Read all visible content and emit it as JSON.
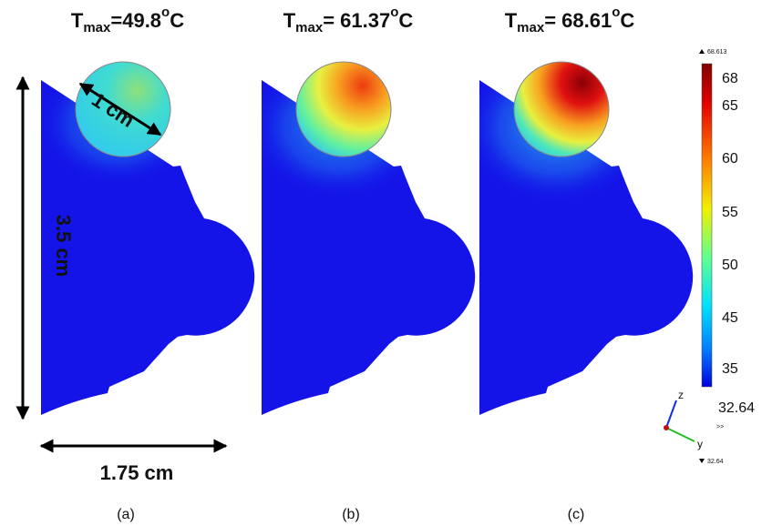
{
  "panels": [
    {
      "title": {
        "base": "T",
        "sub": "max",
        "text": "=49.8",
        "sup": "o",
        "unit": "C"
      },
      "label": "(a)"
    },
    {
      "title": {
        "base": "T",
        "sub": "max",
        "text": "= 61.37",
        "sup": "o",
        "unit": "C"
      },
      "label": "(b)"
    },
    {
      "title": {
        "base": "T",
        "sub": "max",
        "text": "= 68.61",
        "sup": "o",
        "unit": "C"
      },
      "label": "(c)"
    }
  ],
  "annotations": {
    "diameter": "1 cm",
    "height": "3.5 cm",
    "width": "1.75 cm"
  },
  "colorbar": {
    "max_marker": "68.613",
    "min_marker": "32.64",
    "ticks": [
      "68",
      "65",
      "60",
      "55",
      "50",
      "45",
      "35"
    ],
    "min_label": "32.64",
    "arrows": ">>"
  },
  "axes": {
    "z": "z",
    "y": "y"
  }
}
